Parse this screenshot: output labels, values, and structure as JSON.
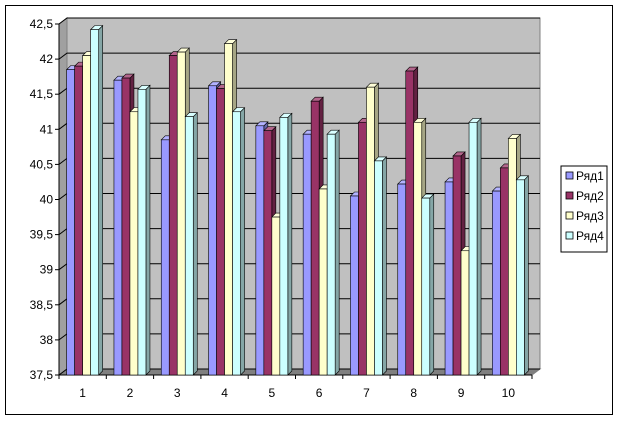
{
  "chart_data": {
    "type": "bar",
    "title": "",
    "xlabel": "",
    "ylabel": "",
    "ylim": [
      37.5,
      42.5
    ],
    "ytick_step": 0.5,
    "y_tick_labels": [
      "37,5",
      "38",
      "38,5",
      "39",
      "39,5",
      "40",
      "40,5",
      "41",
      "41,5",
      "42",
      "42,5"
    ],
    "categories": [
      "1",
      "2",
      "3",
      "4",
      "5",
      "6",
      "7",
      "8",
      "9",
      "10"
    ],
    "series": [
      {
        "name": "Ряд1",
        "color": "#9999ff",
        "values": [
          41.85,
          41.7,
          40.85,
          41.62,
          41.05,
          40.93,
          40.05,
          40.22,
          40.25,
          40.12
        ]
      },
      {
        "name": "Ряд2",
        "color": "#993366",
        "values": [
          41.9,
          41.73,
          42.05,
          41.58,
          40.98,
          41.4,
          41.1,
          41.83,
          40.62,
          40.45
        ]
      },
      {
        "name": "Ряд3",
        "color": "#ffffcc",
        "values": [
          42.05,
          41.25,
          42.1,
          42.22,
          39.75,
          40.15,
          41.6,
          41.1,
          39.27,
          40.87
        ]
      },
      {
        "name": "Ряд4",
        "color": "#ccffff",
        "values": [
          42.42,
          41.57,
          41.18,
          41.25,
          41.17,
          40.93,
          40.55,
          40.02,
          41.1,
          40.28
        ]
      }
    ],
    "grid": true,
    "legend_position": "right",
    "plot_background": "#c0c0c0"
  }
}
